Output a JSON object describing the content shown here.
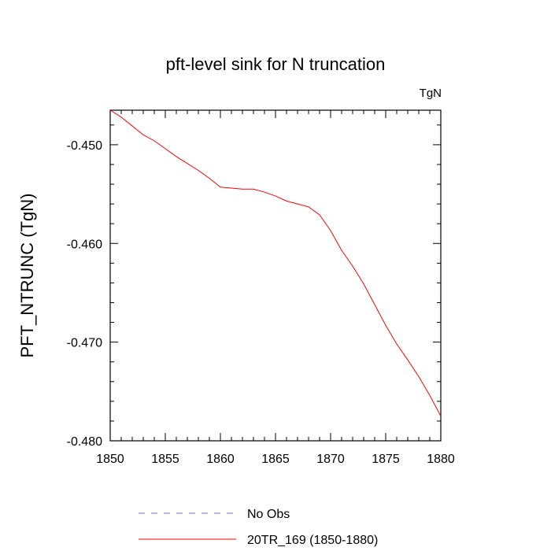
{
  "chart_data": {
    "type": "line",
    "title": "pft-level sink for N truncation",
    "units": "TgN",
    "xlabel": "",
    "ylabel": "PFT_NTRUNC  (TgN)",
    "xlim": [
      1850,
      1880
    ],
    "ylim": [
      -0.48,
      -0.4465
    ],
    "x_major_ticks": [
      1850,
      1855,
      1860,
      1865,
      1870,
      1875,
      1880
    ],
    "x_tick_labels": [
      "1850",
      "1855",
      "1860",
      "1865",
      "1870",
      "1875",
      "1880"
    ],
    "x_minor_step": 1,
    "y_major_ticks": [
      -0.48,
      -0.47,
      -0.46,
      -0.45
    ],
    "y_tick_labels": [
      "-0.480",
      "-0.470",
      "-0.460",
      "-0.450"
    ],
    "y_minor_step": 0.002,
    "series": [
      {
        "name": "No Obs",
        "color": "#6b6bff",
        "style": "dashed",
        "x": [],
        "values": []
      },
      {
        "name": "20TR_169 (1850-1880)",
        "color": "#ff0000",
        "style": "solid",
        "x": [
          1850,
          1851,
          1852,
          1853,
          1854,
          1855,
          1856,
          1857,
          1858,
          1859,
          1860,
          1861,
          1862,
          1863,
          1864,
          1865,
          1866,
          1867,
          1868,
          1869,
          1870,
          1871,
          1872,
          1873,
          1874,
          1875,
          1876,
          1877,
          1878,
          1879,
          1880
        ],
        "values": [
          -0.4465,
          -0.4472,
          -0.4481,
          -0.449,
          -0.4496,
          -0.4504,
          -0.4512,
          -0.4519,
          -0.4526,
          -0.4534,
          -0.4543,
          -0.4544,
          -0.4545,
          -0.4545,
          -0.4548,
          -0.4552,
          -0.4557,
          -0.456,
          -0.4563,
          -0.4571,
          -0.4587,
          -0.4607,
          -0.4623,
          -0.4641,
          -0.4662,
          -0.4683,
          -0.4702,
          -0.4718,
          -0.4735,
          -0.4754,
          -0.4775
        ]
      }
    ],
    "legend": [
      {
        "label": "No Obs",
        "color": "#6b6bff",
        "style": "dashed"
      },
      {
        "label": "20TR_169 (1850-1880)",
        "color": "#ff0000",
        "style": "solid"
      }
    ]
  }
}
